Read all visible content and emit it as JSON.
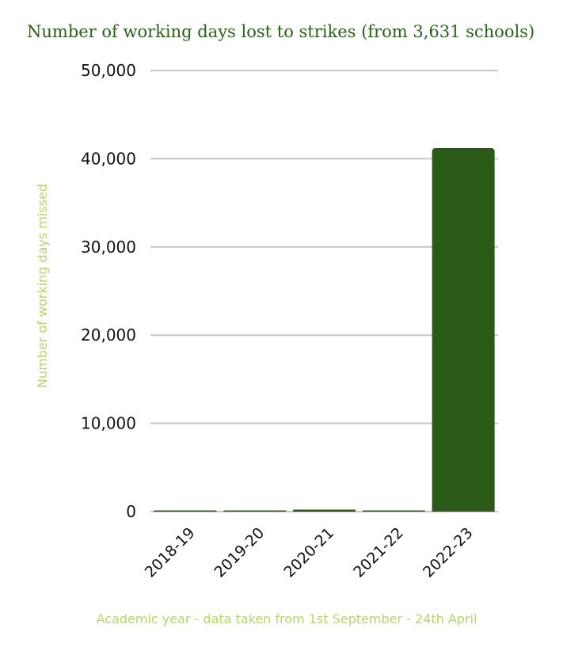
{
  "chart_data": {
    "type": "bar",
    "title": "Number of  working days lost to strikes (from 3,631 schools)",
    "xlabel": "Academic year - data taken from 1st September - 24th April",
    "ylabel": "Number of working days missed",
    "categories": [
      "2018-19",
      "2019-20",
      "2020-21",
      "2021-22",
      "2022-23"
    ],
    "values": [
      80,
      60,
      230,
      60,
      41200
    ],
    "ylim": [
      0,
      50000
    ],
    "yticks": [
      "0",
      "10,000",
      "20,000",
      "30,000",
      "40,000",
      "50,000"
    ],
    "ytick_values": [
      0,
      10000,
      20000,
      30000,
      40000,
      50000
    ],
    "grid": true,
    "legend": "none",
    "colors": {
      "bar": "#2b5a18",
      "title": "#2b5e1a",
      "axis_label": "#b5d56b",
      "grid": "#c6c6c6",
      "tick_text": "#111111"
    }
  }
}
